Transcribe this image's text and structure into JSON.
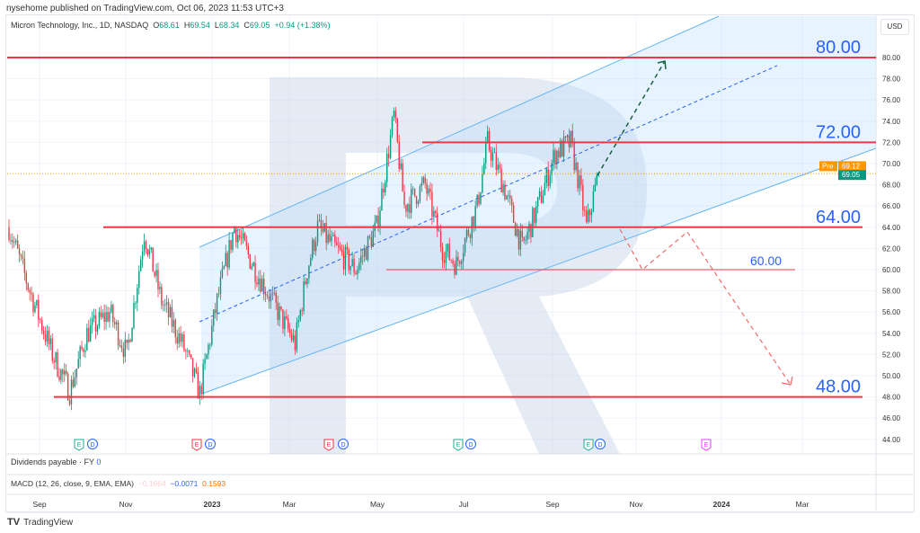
{
  "header": {
    "published": "nysehome published on TradingView.com, Oct 06, 2023 11:53 UTC+3"
  },
  "legend": {
    "symbol": "Micron Technology, Inc., 1D, NASDAQ",
    "open_label": "O",
    "open": "68.61",
    "high_label": "H",
    "high": "69.54",
    "low_label": "L",
    "low": "68.34",
    "close_label": "C",
    "close": "69.05",
    "change": "+0.94 (+1.38%)"
  },
  "currency": "USD",
  "price_axis": {
    "ticks": [
      "80.00",
      "78.00",
      "76.00",
      "74.00",
      "72.00",
      "70.00",
      "68.00",
      "66.00",
      "64.00",
      "62.00",
      "60.00",
      "58.00",
      "56.00",
      "54.00",
      "52.00",
      "50.00",
      "48.00",
      "46.00",
      "44.00"
    ],
    "pre_label": "Pre",
    "pre_price": "69.12",
    "last_price": "69.05",
    "pre_color": "#ff9800",
    "last_color": "#089981"
  },
  "time_axis": {
    "ticks": [
      "Sep",
      "Nov",
      "2023",
      "Mar",
      "May",
      "Jul",
      "Sep",
      "Nov",
      "2024",
      "Mar"
    ]
  },
  "levels": [
    {
      "price": 80,
      "label": "80.00"
    },
    {
      "price": 72,
      "label": "72.00"
    },
    {
      "price": 64,
      "label": "64.00"
    },
    {
      "price": 60,
      "label": "60.00"
    },
    {
      "price": 48,
      "label": "48.00"
    }
  ],
  "price_path": [
    [
      0,
      64
    ],
    [
      12,
      58
    ],
    [
      25,
      52
    ],
    [
      35,
      48.5
    ],
    [
      45,
      54
    ],
    [
      58,
      56
    ],
    [
      68,
      52
    ],
    [
      78,
      63.5
    ],
    [
      88,
      57
    ],
    [
      100,
      53
    ],
    [
      110,
      48.3
    ],
    [
      120,
      57
    ],
    [
      130,
      64
    ],
    [
      142,
      60
    ],
    [
      152,
      57
    ],
    [
      165,
      53
    ],
    [
      172,
      60
    ],
    [
      178,
      64
    ],
    [
      188,
      62
    ],
    [
      200,
      60
    ],
    [
      212,
      64
    ],
    [
      222,
      74.5
    ],
    [
      228,
      66
    ],
    [
      240,
      68
    ],
    [
      250,
      62
    ],
    [
      258,
      60.5
    ],
    [
      270,
      66
    ],
    [
      276,
      72
    ],
    [
      285,
      68
    ],
    [
      296,
      62
    ],
    [
      305,
      66
    ],
    [
      315,
      71
    ],
    [
      324,
      72
    ],
    [
      330,
      67
    ],
    [
      333,
      64
    ],
    [
      340,
      69.05
    ]
  ],
  "events": [
    {
      "type": "E",
      "color": "#22ab94"
    },
    {
      "type": "D"
    },
    {
      "type": "E",
      "color": "#f23645"
    },
    {
      "type": "D"
    },
    {
      "type": "E",
      "color": "#f23645"
    },
    {
      "type": "D"
    },
    {
      "type": "E",
      "color": "#22ab94"
    },
    {
      "type": "D"
    },
    {
      "type": "E",
      "color": "#22ab94"
    },
    {
      "type": "D"
    },
    {
      "type": "E",
      "color": "#e040fb"
    }
  ],
  "dividends": {
    "label": "Dividends payable · FY",
    "value": "0"
  },
  "macd": {
    "label": "MACD (12, 26, close, 9, EMA, EMA)",
    "hist": "−0.1664",
    "macd": "−0.0071",
    "signal": "0.1593"
  },
  "footer": {
    "brand": "TradingView"
  },
  "colors": {
    "up": "#089981",
    "down": "#f23645",
    "level": "#f23645",
    "label": "#2962ff",
    "channel": "#bbdefb"
  }
}
